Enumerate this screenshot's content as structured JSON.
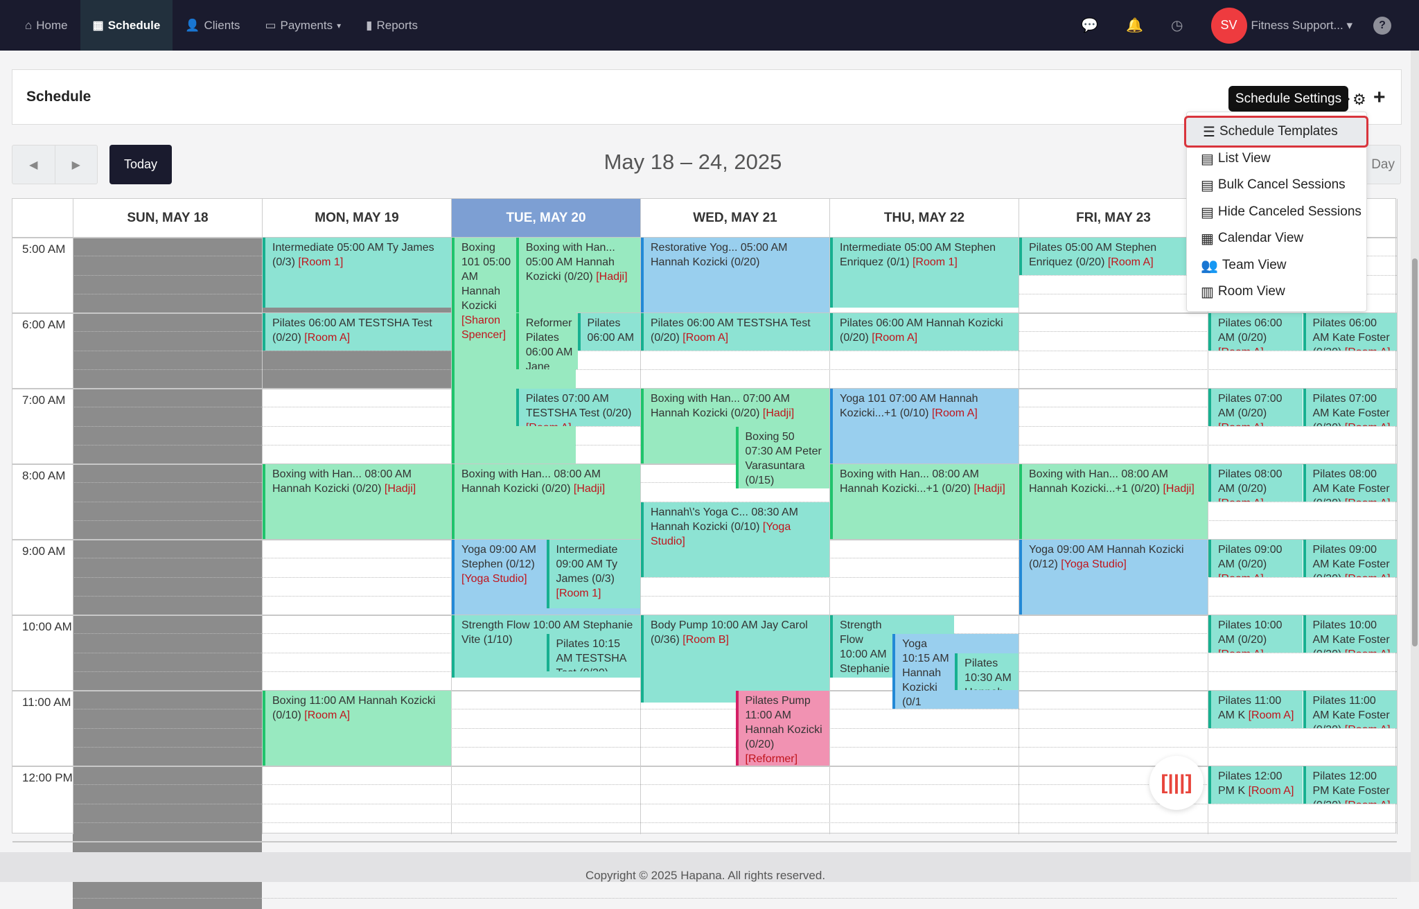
{
  "nav": {
    "items": [
      {
        "label": "Home",
        "icon": "home-icon"
      },
      {
        "label": "Schedule",
        "icon": "calendar-icon",
        "active": true
      },
      {
        "label": "Clients",
        "icon": "user-icon"
      },
      {
        "label": "Payments",
        "icon": "credit-card-icon",
        "dropdown": true
      },
      {
        "label": "Reports",
        "icon": "bar-chart-icon"
      }
    ],
    "avatar_initials": "SV",
    "user_name": "Fitness Support...",
    "help": "?"
  },
  "page": {
    "title": "Schedule",
    "tooltip": "Schedule Settings",
    "today_label": "Today",
    "date_range": "May 18 – 24, 2025",
    "view_label": "Day"
  },
  "settings_menu": [
    {
      "label": "Schedule Templates",
      "icon": "list-icon",
      "glyph": "☰",
      "highlighted": true
    },
    {
      "label": "List View",
      "icon": "list-alt-icon",
      "glyph": "▤"
    },
    {
      "label": "Bulk Cancel Sessions",
      "icon": "list-alt-icon",
      "glyph": "▤"
    },
    {
      "label": "Hide Canceled Sessions",
      "icon": "list-alt-icon",
      "glyph": "▤"
    },
    {
      "label": "Calendar View",
      "icon": "calendar-icon",
      "glyph": "▦"
    },
    {
      "label": "Team View",
      "icon": "users-icon",
      "glyph": "👥"
    },
    {
      "label": "Room View",
      "icon": "building-icon",
      "glyph": "▥"
    }
  ],
  "days": [
    "SUN, MAY 18",
    "MON, MAY 19",
    "TUE, MAY 20",
    "WED, MAY 21",
    "THU, MAY 22",
    "FRI, MAY 23",
    "SAT, MAY 24"
  ],
  "today_index": 2,
  "times": [
    "5:00 AM",
    "6:00 AM",
    "7:00 AM",
    "8:00 AM",
    "9:00 AM",
    "10:00 AM",
    "11:00 AM",
    "12:00 PM"
  ],
  "colors": {
    "teal": {
      "bg": "#8de3d3",
      "stripe": "#17b090"
    },
    "green": {
      "bg": "#98e9c0",
      "stripe": "#1fc46c"
    },
    "blue": {
      "bg": "#99cfee",
      "stripe": "#2389d6"
    },
    "pink": {
      "bg": "#f192b2",
      "stripe": "#d31f66"
    },
    "unavailable": "#8c8c8c",
    "room_text": "#c0141c",
    "today_header": "#7d9fd3"
  },
  "events": [
    {
      "day": 1,
      "start": "05:00",
      "end": "05:56",
      "color": "teal",
      "text": "Intermediate 05:00 AM Ty James (0/3)",
      "room": "[Room 1]"
    },
    {
      "day": 1,
      "start": "06:00",
      "end": "06:30",
      "color": "teal",
      "text": "Pilates 06:00 AM TESTSHA Test (0/20)",
      "room": "[Room A]"
    },
    {
      "day": 1,
      "start": "08:00",
      "end": "09:00",
      "color": "green",
      "text": "Boxing with Han... 08:00 AM Hannah Kozicki (0/20)",
      "room": "[Hadji]"
    },
    {
      "day": 1,
      "start": "11:00",
      "end": "12:00",
      "color": "green",
      "text": "Boxing 11:00 AM Hannah Kozicki (0/10)",
      "room": "[Room A]"
    },
    {
      "day": 2,
      "start": "05:00",
      "end": "08:00",
      "color": "green",
      "text": "Boxing 101 05:00 AM Hannah Kozicki",
      "room": "[Sharon Spencer]"
    },
    {
      "day": 2,
      "start": "05:00",
      "end": "06:00",
      "color": "green",
      "text": "Boxing with Han... 05:00 AM Hannah Kozicki (0/20)",
      "room": "[Hadji]"
    },
    {
      "day": 2,
      "start": "06:00",
      "end": "06:45",
      "color": "green",
      "text": "Reformer Pilates 06:00 AM Jane (0/10)",
      "room": ""
    },
    {
      "day": 2,
      "start": "06:00",
      "end": "06:30",
      "color": "teal",
      "text": "Pilates 06:00 AM",
      "room": ""
    },
    {
      "day": 2,
      "start": "07:00",
      "end": "07:30",
      "color": "teal",
      "text": "Pilates 07:00 AM TESTSHA Test (0/20)",
      "room": "[Room A]"
    },
    {
      "day": 2,
      "start": "08:00",
      "end": "09:00",
      "color": "green",
      "text": "Boxing with Han... 08:00 AM Hannah Kozicki (0/20)",
      "room": "[Hadji]"
    },
    {
      "day": 2,
      "start": "09:00",
      "end": "10:00",
      "color": "blue",
      "text": "Yoga 09:00 AM Stephen (0/12)",
      "room": "[Yoga Studio]"
    },
    {
      "day": 2,
      "start": "09:00",
      "end": "09:55",
      "color": "teal",
      "text": "Intermediate 09:00 AM Ty James (0/3)",
      "room": "[Room 1]"
    },
    {
      "day": 2,
      "start": "10:00",
      "end": "10:50",
      "color": "teal",
      "text": "Strength Flow 10:00 AM Stephanie Vite (1/10)",
      "room": ""
    },
    {
      "day": 2,
      "start": "10:15",
      "end": "10:45",
      "color": "teal",
      "text": "Pilates 10:15 AM TESTSHA Test (0/20)",
      "room": "[Room A]"
    },
    {
      "day": 3,
      "start": "05:00",
      "end": "06:00",
      "color": "blue",
      "text": "Restorative Yog... 05:00 AM Hannah Kozicki (0/20)",
      "room": ""
    },
    {
      "day": 3,
      "start": "06:00",
      "end": "06:30",
      "color": "teal",
      "text": "Pilates 06:00 AM TESTSHA Test (0/20)",
      "room": "[Room A]"
    },
    {
      "day": 3,
      "start": "07:00",
      "end": "08:00",
      "color": "green",
      "text": "Boxing with Han... 07:00 AM Hannah Kozicki (0/20)",
      "room": "[Hadji]"
    },
    {
      "day": 3,
      "start": "07:30",
      "end": "08:20",
      "color": "green",
      "text": "Boxing 50 07:30 AM Peter Varasuntara (0/15)",
      "room": ""
    },
    {
      "day": 3,
      "start": "08:30",
      "end": "09:30",
      "color": "teal",
      "text": "Hannah\\'s Yoga C... 08:30 AM Hannah Kozicki (0/10)",
      "room": "[Yoga Studio]"
    },
    {
      "day": 3,
      "start": "10:00",
      "end": "11:10",
      "color": "teal",
      "text": "Body Pump 10:00 AM Jay Carol (0/36)",
      "room": "[Room B]"
    },
    {
      "day": 3,
      "start": "11:00",
      "end": "12:00",
      "color": "pink",
      "text": "Pilates Pump 11:00 AM Hannah Kozicki (0/20)",
      "room": "[Reformer]"
    },
    {
      "day": 4,
      "start": "05:00",
      "end": "05:56",
      "color": "teal",
      "text": "Intermediate 05:00 AM Stephen Enriquez (0/1)",
      "room": "[Room 1]"
    },
    {
      "day": 4,
      "start": "06:00",
      "end": "06:30",
      "color": "teal",
      "text": "Pilates 06:00 AM Hannah Kozicki (0/20)",
      "room": "[Room A]"
    },
    {
      "day": 4,
      "start": "07:00",
      "end": "08:00",
      "color": "blue",
      "text": "Yoga 101 07:00 AM Hannah Kozicki...+1 (0/10)",
      "room": "[Room A]"
    },
    {
      "day": 4,
      "start": "08:00",
      "end": "09:00",
      "color": "green",
      "text": "Boxing with Han... 08:00 AM Hannah Kozicki...+1 (0/20)",
      "room": "[Hadji]"
    },
    {
      "day": 4,
      "start": "10:00",
      "end": "10:50",
      "color": "teal",
      "text": "Strength Flow 10:00 AM Stephanie Vite (1/10)",
      "room": ""
    },
    {
      "day": 4,
      "start": "10:15",
      "end": "11:15",
      "color": "blue",
      "text": "Yoga 10:15 AM Hannah Kozicki (0/1",
      "room": "Studio]"
    },
    {
      "day": 4,
      "start": "10:30",
      "end": "11:00",
      "color": "teal",
      "text": "Pilates 10:30 AM Hannah",
      "room": ""
    },
    {
      "day": 5,
      "start": "05:00",
      "end": "05:30",
      "color": "teal",
      "text": "Pilates 05:00 AM Stephen Enriquez (0/20)",
      "room": "[Room A]"
    },
    {
      "day": 5,
      "start": "08:00",
      "end": "09:00",
      "color": "green",
      "text": "Boxing with Han... 08:00 AM Hannah Kozicki...+1 (0/20)",
      "room": "[Hadji]"
    },
    {
      "day": 5,
      "start": "09:00",
      "end": "10:00",
      "color": "blue",
      "text": "Yoga 09:00 AM Hannah Kozicki (0/12)",
      "room": "[Yoga Studio]"
    },
    {
      "day": 6,
      "start": "06:00",
      "end": "06:30",
      "color": "teal",
      "text": "Pilates 06:00 AM (0/20)",
      "room": "[Room A]"
    },
    {
      "day": 6,
      "start": "06:00",
      "end": "06:30",
      "color": "teal",
      "text": "Pilates 06:00 AM Kate Foster (0/20)",
      "room": "[Room A]"
    },
    {
      "day": 6,
      "start": "07:00",
      "end": "07:30",
      "color": "teal",
      "text": "Pilates 07:00 AM (0/20)",
      "room": "[Room A]"
    },
    {
      "day": 6,
      "start": "07:00",
      "end": "07:30",
      "color": "teal",
      "text": "Pilates 07:00 AM Kate Foster (0/20)",
      "room": "[Room A]"
    },
    {
      "day": 6,
      "start": "08:00",
      "end": "08:30",
      "color": "teal",
      "text": "Pilates 08:00 AM (0/20)",
      "room": "[Room A]"
    },
    {
      "day": 6,
      "start": "08:00",
      "end": "08:30",
      "color": "teal",
      "text": "Pilates 08:00 AM Kate Foster (0/20)",
      "room": "[Room A]"
    },
    {
      "day": 6,
      "start": "09:00",
      "end": "09:30",
      "color": "teal",
      "text": "Pilates 09:00 AM (0/20)",
      "room": "[Room A]"
    },
    {
      "day": 6,
      "start": "09:00",
      "end": "09:30",
      "color": "teal",
      "text": "Pilates 09:00 AM Kate Foster (0/20)",
      "room": "[Room A]"
    },
    {
      "day": 6,
      "start": "10:00",
      "end": "10:30",
      "color": "teal",
      "text": "Pilates 10:00 AM (0/20)",
      "room": "[Room A]"
    },
    {
      "day": 6,
      "start": "10:00",
      "end": "10:30",
      "color": "teal",
      "text": "Pilates 10:00 AM Kate Foster (0/20)",
      "room": "[Room A]"
    },
    {
      "day": 6,
      "start": "11:00",
      "end": "11:30",
      "color": "teal",
      "text": "Pilates 11:00 AM K",
      "room": "[Room A]"
    },
    {
      "day": 6,
      "start": "11:00",
      "end": "11:30",
      "color": "teal",
      "text": "Pilates 11:00 AM Kate Foster (0/20)",
      "room": "[Room A]"
    },
    {
      "day": 6,
      "start": "12:00",
      "end": "12:30",
      "color": "teal",
      "text": "Pilates 12:00 PM K",
      "room": "[Room A]"
    },
    {
      "day": 6,
      "start": "12:00",
      "end": "12:30",
      "color": "teal",
      "text": "Pilates 12:00 PM Kate Foster (0/20)",
      "room": "[Room A]"
    }
  ],
  "footer": "Copyright © 2025 Hapana. All rights reserved."
}
